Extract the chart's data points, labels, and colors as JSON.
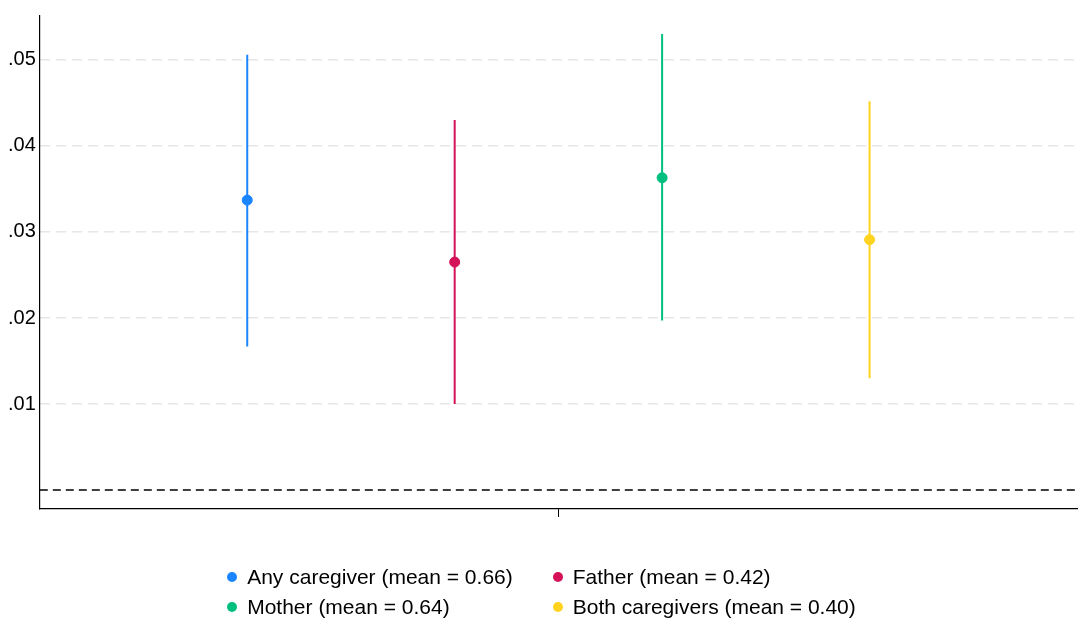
{
  "chart_data": {
    "type": "scatter",
    "categories": [
      null
    ],
    "series": [
      {
        "name": "Any caregiver (mean = 0.66)",
        "color": "#1a85ff",
        "values": [
          0.0337
        ],
        "errors": [
          [
            0.0167,
            0.0506
          ]
        ]
      },
      {
        "name": "Father (mean = 0.42)",
        "color": "#d41159",
        "values": [
          0.0265
        ],
        "errors": [
          [
            0.01,
            0.043
          ]
        ]
      },
      {
        "name": "Mother (mean = 0.64)",
        "color": "#00bf7f",
        "values": [
          0.0363
        ],
        "errors": [
          [
            0.0197,
            0.053
          ]
        ]
      },
      {
        "name": "Both caregivers (mean = 0.40)",
        "color": "#ffd320",
        "values": [
          0.0291
        ],
        "errors": [
          [
            0.013,
            0.0452
          ]
        ]
      }
    ],
    "ylim": [
      -0.0022,
      0.0551
    ],
    "yticks": [
      {
        "value": 0.01,
        "label": ".01"
      },
      {
        "value": 0.02,
        "label": ".02"
      },
      {
        "value": 0.03,
        "label": ".03"
      },
      {
        "value": 0.04,
        "label": ".04"
      },
      {
        "value": 0.05,
        "label": ".05"
      }
    ],
    "ref_lines": [
      {
        "axis": "y",
        "value": 0,
        "color": "#000000",
        "line_style": "dashed"
      }
    ],
    "grid": "y",
    "legend": "bottom",
    "marker": "circle",
    "tick_labels": "y"
  }
}
